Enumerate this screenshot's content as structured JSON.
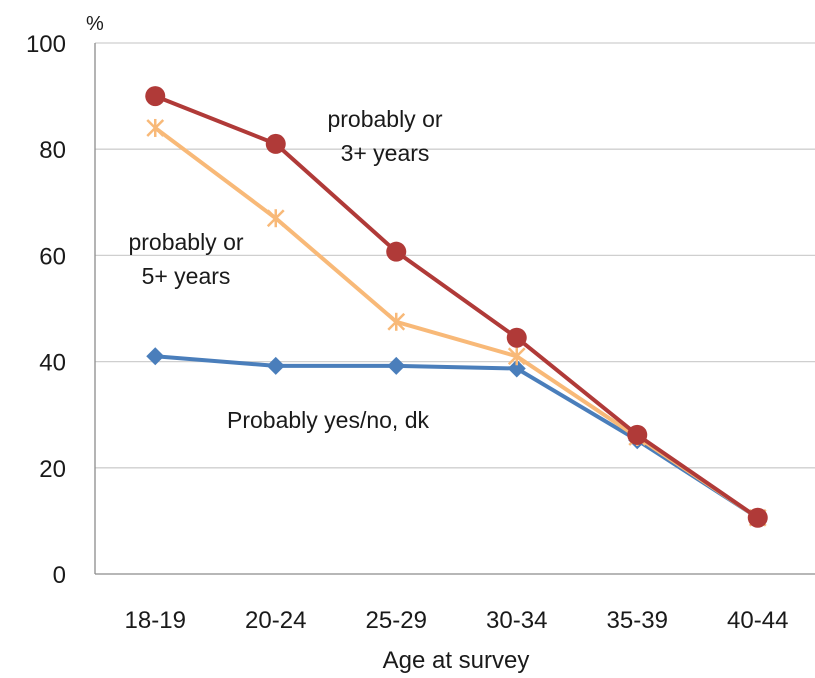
{
  "chart_data": {
    "type": "line",
    "title": "",
    "unit_label": "%",
    "xlabel": "Age at survey",
    "ylabel": "",
    "ylim": [
      0,
      100
    ],
    "yticks": [
      0,
      20,
      40,
      60,
      80,
      100
    ],
    "categories": [
      "18-19",
      "20-24",
      "25-29",
      "30-34",
      "35-39",
      "40-44"
    ],
    "grid": "horizontal",
    "series": [
      {
        "label": "Probably yes/no, dk",
        "color": "#4a7ebb",
        "marker": "diamond",
        "values": [
          41,
          39.2,
          39.2,
          38.7,
          25.2,
          10.6
        ]
      },
      {
        "label": "probably or 5+ years",
        "color": "#f8b978",
        "marker": "x",
        "values": [
          84,
          67,
          47.5,
          41,
          25.8,
          10.6
        ]
      },
      {
        "label": "probably or 3+ years",
        "color": "#b03a38",
        "marker": "circle",
        "values": [
          90,
          81,
          60.7,
          44.5,
          26.2,
          10.6
        ]
      }
    ],
    "annotations": [
      {
        "series": 2,
        "lines": [
          "probably or",
          "3+ years"
        ]
      },
      {
        "series": 1,
        "lines": [
          "probably or",
          "5+ years"
        ]
      },
      {
        "series": 0,
        "lines": [
          "Probably yes/no, dk"
        ]
      }
    ]
  }
}
